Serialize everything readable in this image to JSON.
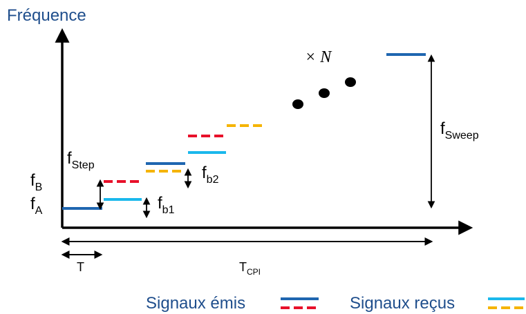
{
  "axes": {
    "y_label": "Fréquence"
  },
  "labels": {
    "f_B_main": "f",
    "f_B_sub": "B",
    "f_A_main": "f",
    "f_A_sub": "A",
    "f_step_main": "f",
    "f_step_sub": "Step",
    "f_b1_main": "f",
    "f_b1_sub": "b1",
    "f_b2_main": "f",
    "f_b2_sub": "b2",
    "f_sweep_main": "f",
    "f_sweep_sub": "Sweep",
    "times_n": "× N",
    "T": "T",
    "T_cpi_main": "T",
    "T_cpi_sub": "CPI"
  },
  "legend": {
    "emitted": "Signaux émis",
    "received": "Signaux reçus"
  },
  "colors": {
    "emitted_blue": "#1f66b0",
    "emitted_red": "#e8102a",
    "received_cyan": "#1ab8ec",
    "received_orange": "#f5b400",
    "text_blue": "#1f4e8c",
    "axis": "#000000"
  }
}
